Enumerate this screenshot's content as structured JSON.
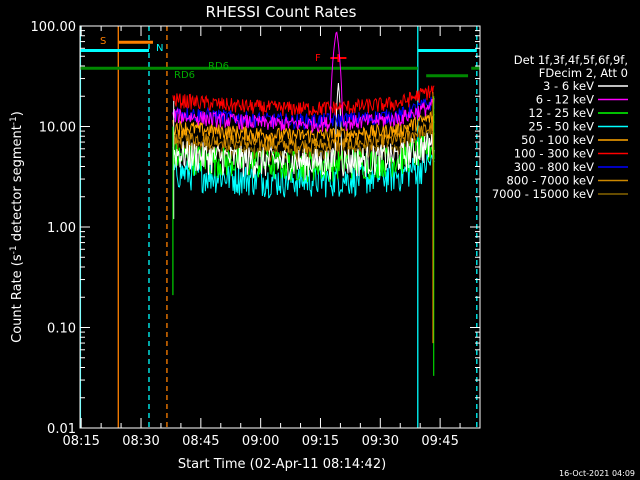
{
  "chart_data": {
    "type": "line",
    "title": "RHESSI Count Rates",
    "xlabel": "Start Time (02-Apr-11 08:14:42)",
    "ylabel_main": "Count Rate (s",
    "ylabel_sup": "-1",
    "ylabel_rest": " detector segment",
    "ylabel_sup2": "-1",
    "ylabel_end": ")",
    "y_scale": "log",
    "ylim": [
      0.01,
      100
    ],
    "y_ticks": [
      {
        "value": 0.01,
        "label": "0.01"
      },
      {
        "value": 0.1,
        "label": "0.10"
      },
      {
        "value": 1,
        "label": "1.00"
      },
      {
        "value": 10,
        "label": "10.00"
      },
      {
        "value": 100,
        "label": "100.00"
      }
    ],
    "xlim": [
      "08:14:42",
      "09:55:00"
    ],
    "x_ticks": [
      "08:15",
      "08:30",
      "08:45",
      "09:00",
      "09:15",
      "09:30",
      "09:45"
    ],
    "x_tick_minutes": [
      15,
      30,
      45,
      60,
      75,
      90,
      105
    ],
    "x_start_minutes": 14.7,
    "x_end_minutes": 115.0,
    "data_start_minutes": 38.0,
    "data_end_minutes": 103.5,
    "legend_header": [
      "Det 1f,3f,4f,5f,6f,9f,",
      "FDecim 2, Att 0"
    ],
    "series": [
      {
        "name": "3 - 6 keV",
        "color": "#ffffff",
        "base": 5.5
      },
      {
        "name": "6 - 12 keV",
        "color": "#ff00ff",
        "base": 13
      },
      {
        "name": "12 - 25 keV",
        "color": "#00ff00",
        "base": 5.2
      },
      {
        "name": "25 - 50 keV",
        "color": "#00ffff",
        "base": 3.6
      },
      {
        "name": "50 - 100 keV",
        "color": "#ffa500",
        "base": 10
      },
      {
        "name": "100 - 300 keV",
        "color": "#ff0000",
        "base": 18.5
      },
      {
        "name": "300 - 800 keV",
        "color": "#0000ff",
        "base": 14
      },
      {
        "name": "800 - 7000 keV",
        "color": "#cc8800",
        "base": 8
      },
      {
        "name": "7000 - 15000 keV",
        "color": "#886600",
        "base": 6.5
      }
    ],
    "annotations": [
      {
        "label": "S",
        "color": "#ff8000"
      },
      {
        "label": "N",
        "color": "#00ffff"
      },
      {
        "label": "RD6",
        "color": "#00aa00"
      },
      {
        "label": "RD6",
        "color": "#00aa00"
      },
      {
        "label": "F",
        "color": "#ff0000"
      }
    ],
    "date_stamp": "16-Oct-2021 04:09",
    "grid": false,
    "legend_position": "right"
  }
}
